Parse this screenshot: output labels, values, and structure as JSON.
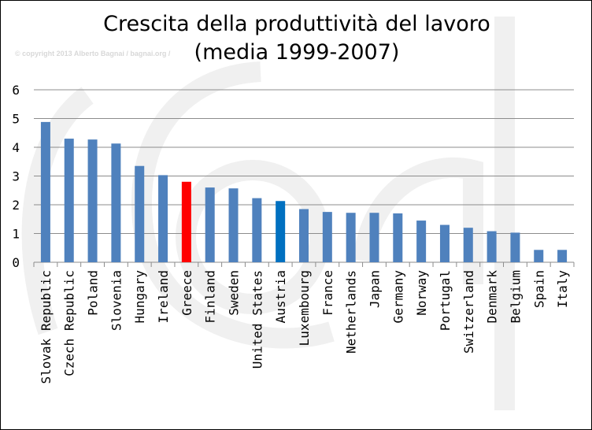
{
  "chart_data": {
    "type": "bar",
    "title": "Crescita della produttività del lavoro",
    "subtitle": "(media 1999-2007)",
    "watermark": "© copyright 2013 Alberto Bagnai / bagnai.org /",
    "xlabel": "",
    "ylabel": "",
    "ylim": [
      0,
      6
    ],
    "yticks": [
      0,
      1,
      2,
      3,
      4,
      5,
      6
    ],
    "grid": true,
    "categories": [
      "Slovak Republic",
      "Czech Republic",
      "Poland",
      "Slovenia",
      "Hungary",
      "Ireland",
      "Greece",
      "Finland",
      "Sweden",
      "United States",
      "Austria",
      "Luxembourg",
      "France",
      "Netherlands",
      "Japan",
      "Germany",
      "Norway",
      "Portugal",
      "Switzerland",
      "Denmark",
      "Belgium",
      "Spain",
      "Italy"
    ],
    "values": [
      4.88,
      4.3,
      4.27,
      4.13,
      3.35,
      3.03,
      2.8,
      2.6,
      2.57,
      2.23,
      2.13,
      1.85,
      1.75,
      1.72,
      1.72,
      1.7,
      1.45,
      1.3,
      1.2,
      1.08,
      1.03,
      0.43,
      0.43
    ],
    "colors": {
      "default": "#4f81bd",
      "highlight_greece": "#ff0000",
      "highlight_austria": "#0070c0"
    },
    "bar_colors": [
      "#4f81bd",
      "#4f81bd",
      "#4f81bd",
      "#4f81bd",
      "#4f81bd",
      "#4f81bd",
      "#ff0000",
      "#4f81bd",
      "#4f81bd",
      "#4f81bd",
      "#0070c0",
      "#4f81bd",
      "#4f81bd",
      "#4f81bd",
      "#4f81bd",
      "#4f81bd",
      "#4f81bd",
      "#4f81bd",
      "#4f81bd",
      "#4f81bd",
      "#4f81bd",
      "#4f81bd",
      "#4f81bd"
    ]
  }
}
